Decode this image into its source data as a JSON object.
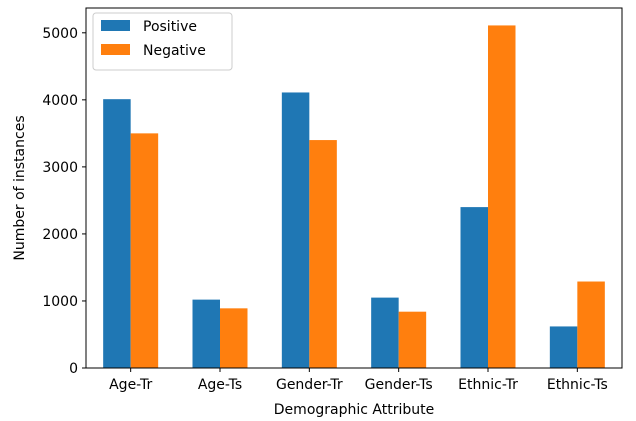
{
  "chart_data": {
    "type": "bar",
    "title": "",
    "xlabel": "Demographic Attribute",
    "ylabel": "Number of instances",
    "categories": [
      "Age-Tr",
      "Age-Ts",
      "Gender-Tr",
      "Gender-Ts",
      "Ethnic-Tr",
      "Ethnic-Ts"
    ],
    "series": [
      {
        "name": "Positive",
        "color": "#1f77b4",
        "values": [
          4010,
          1020,
          4110,
          1050,
          2400,
          620
        ]
      },
      {
        "name": "Negative",
        "color": "#ff7f0e",
        "values": [
          3500,
          890,
          3400,
          840,
          5110,
          1290
        ]
      }
    ],
    "ylim": [
      0,
      5370
    ],
    "yticks": [
      0,
      1000,
      2000,
      3000,
      4000,
      5000
    ],
    "grid": false,
    "legend_position": "top-left"
  }
}
